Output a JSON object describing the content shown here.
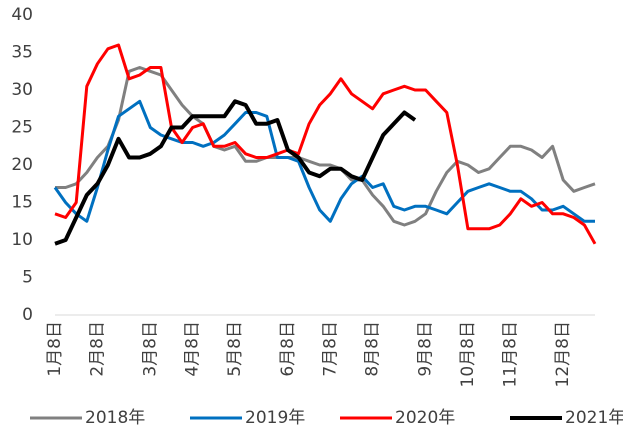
{
  "chart_data": {
    "type": "line",
    "categories": [
      "1月8日",
      null,
      null,
      null,
      "2月8日",
      null,
      null,
      null,
      null,
      "3月8日",
      null,
      null,
      null,
      "4月8日",
      null,
      null,
      null,
      "5月8日",
      null,
      null,
      null,
      null,
      "6月8日",
      null,
      null,
      null,
      "7月8日",
      null,
      null,
      null,
      "8月8日",
      null,
      null,
      null,
      null,
      "9月8日",
      null,
      null,
      null,
      "10月8日",
      null,
      null,
      null,
      "11月8日",
      null,
      null,
      null,
      null,
      "12月8日",
      null,
      null,
      null
    ],
    "series": [
      {
        "name": "2018年",
        "color": "#808080",
        "values": [
          17,
          17,
          17.5,
          19,
          21,
          22.5,
          26,
          32.5,
          33,
          32.5,
          32,
          30,
          28,
          26.5,
          25.5,
          22.5,
          22,
          22.5,
          20.5,
          20.5,
          21,
          21,
          21,
          21,
          20.5,
          20,
          20,
          19.5,
          18,
          18,
          16,
          14.5,
          12.5,
          12,
          12.5,
          13.5,
          16.5,
          19,
          20.5,
          20,
          19,
          19.5,
          21,
          22.5,
          22.5,
          22,
          21,
          22.5,
          18,
          16.5,
          17,
          17.5
        ]
      },
      {
        "name": "2019年",
        "color": "#0070c0",
        "values": [
          17,
          15,
          13.5,
          12.5,
          17,
          22,
          26.5,
          27.5,
          28.5,
          25,
          24,
          23.5,
          23,
          23,
          22.5,
          23,
          24,
          25.5,
          27,
          27,
          26.5,
          21,
          21,
          20.5,
          17,
          14,
          12.5,
          15.5,
          17.5,
          18.5,
          17,
          17.5,
          14.5,
          14,
          14.5,
          14.5,
          14,
          13.5,
          15,
          16.5,
          17,
          17.5,
          17,
          16.5,
          16.5,
          15.5,
          14,
          14,
          14.5,
          13.5,
          12.5,
          12.5
        ]
      },
      {
        "name": "2020年",
        "color": "#ff0000",
        "values": [
          13.5,
          13,
          15,
          30.5,
          33.5,
          35.5,
          36,
          31.5,
          32,
          33,
          33,
          25,
          23,
          25,
          25.5,
          22.5,
          22.5,
          23,
          21.5,
          21,
          21,
          21.5,
          22,
          21.5,
          25.5,
          28,
          29.5,
          31.5,
          29.5,
          28.5,
          27.5,
          29.5,
          30,
          30.5,
          30,
          30,
          28.5,
          27,
          20,
          11.5,
          11.5,
          11.5,
          12,
          13.5,
          15.5,
          14.5,
          15,
          13.5,
          13.5,
          13,
          12,
          9.5
        ]
      },
      {
        "name": "2021年",
        "color": "#000000",
        "values": [
          9.5,
          10,
          13,
          16,
          17.5,
          20,
          23.5,
          21,
          21,
          21.5,
          22.5,
          25,
          25,
          26.5,
          26.5,
          26.5,
          26.5,
          28.5,
          28,
          25.5,
          25.5,
          26,
          22,
          21,
          19,
          18.5,
          19.5,
          19.5,
          18.5,
          18,
          21,
          24,
          25.5,
          27,
          26,
          null,
          null,
          null,
          null,
          null,
          null,
          null,
          null,
          null,
          null,
          null,
          null,
          null,
          null,
          null,
          null,
          null
        ]
      }
    ],
    "ylim": [
      0,
      40
    ],
    "yticks": [
      0,
      5,
      10,
      15,
      20,
      25,
      30,
      35,
      40
    ],
    "grid": false,
    "legend": "bottom"
  }
}
